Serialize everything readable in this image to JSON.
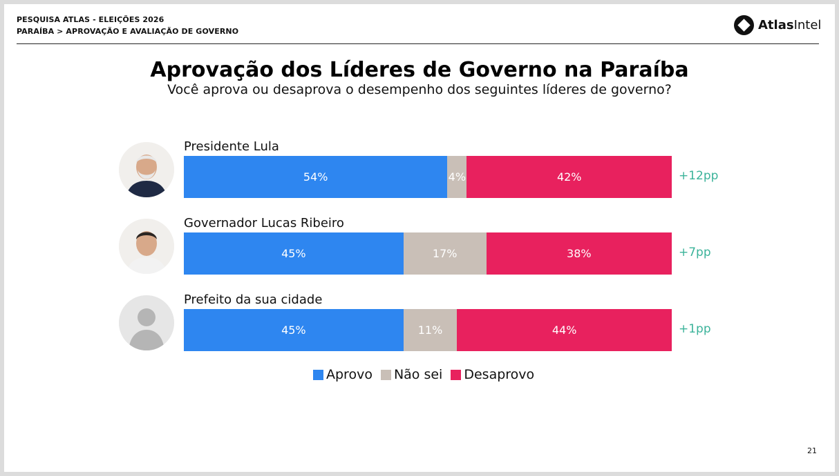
{
  "header": {
    "line1": "PESQUISA ATLAS - ELEIÇÕES 2026",
    "line2": "PARAÍBA > APROVAÇÃO E AVALIAÇÃO DE GOVERNO",
    "logo_bold": "Atlas",
    "logo_regular": "Intel"
  },
  "chart_data": {
    "type": "bar",
    "stacked": true,
    "orientation": "horizontal",
    "title": "Aprovação dos Líderes de Governo na Paraíba",
    "subtitle": "Você aprova ou desaprova o desempenho dos seguintes líderes de governo?",
    "categories": [
      "Presidente Lula",
      "Governador Lucas Ribeiro",
      "Prefeito da sua cidade"
    ],
    "series": [
      {
        "name": "Aprovo",
        "values": [
          54,
          45,
          45
        ],
        "labels": [
          "54%",
          "45%",
          "45%"
        ],
        "color": "#2e86f0"
      },
      {
        "name": "Não sei",
        "values": [
          4,
          17,
          11
        ],
        "labels": [
          "4%",
          "17%",
          "11%"
        ],
        "color": "#c9bfb7"
      },
      {
        "name": "Desaprovo",
        "values": [
          42,
          38,
          44
        ],
        "labels": [
          "42%",
          "38%",
          "44%"
        ],
        "color": "#e8215e"
      }
    ],
    "differences": [
      "+12pp",
      "+7pp",
      "+1pp"
    ],
    "difference_color": "#3bb39a",
    "legend_position": "bottom-center",
    "xlim": [
      0,
      100
    ],
    "grid": false
  },
  "avatars": [
    "person-photo-icon",
    "person-photo-icon",
    "person-silhouette-icon"
  ],
  "page_number": "21"
}
